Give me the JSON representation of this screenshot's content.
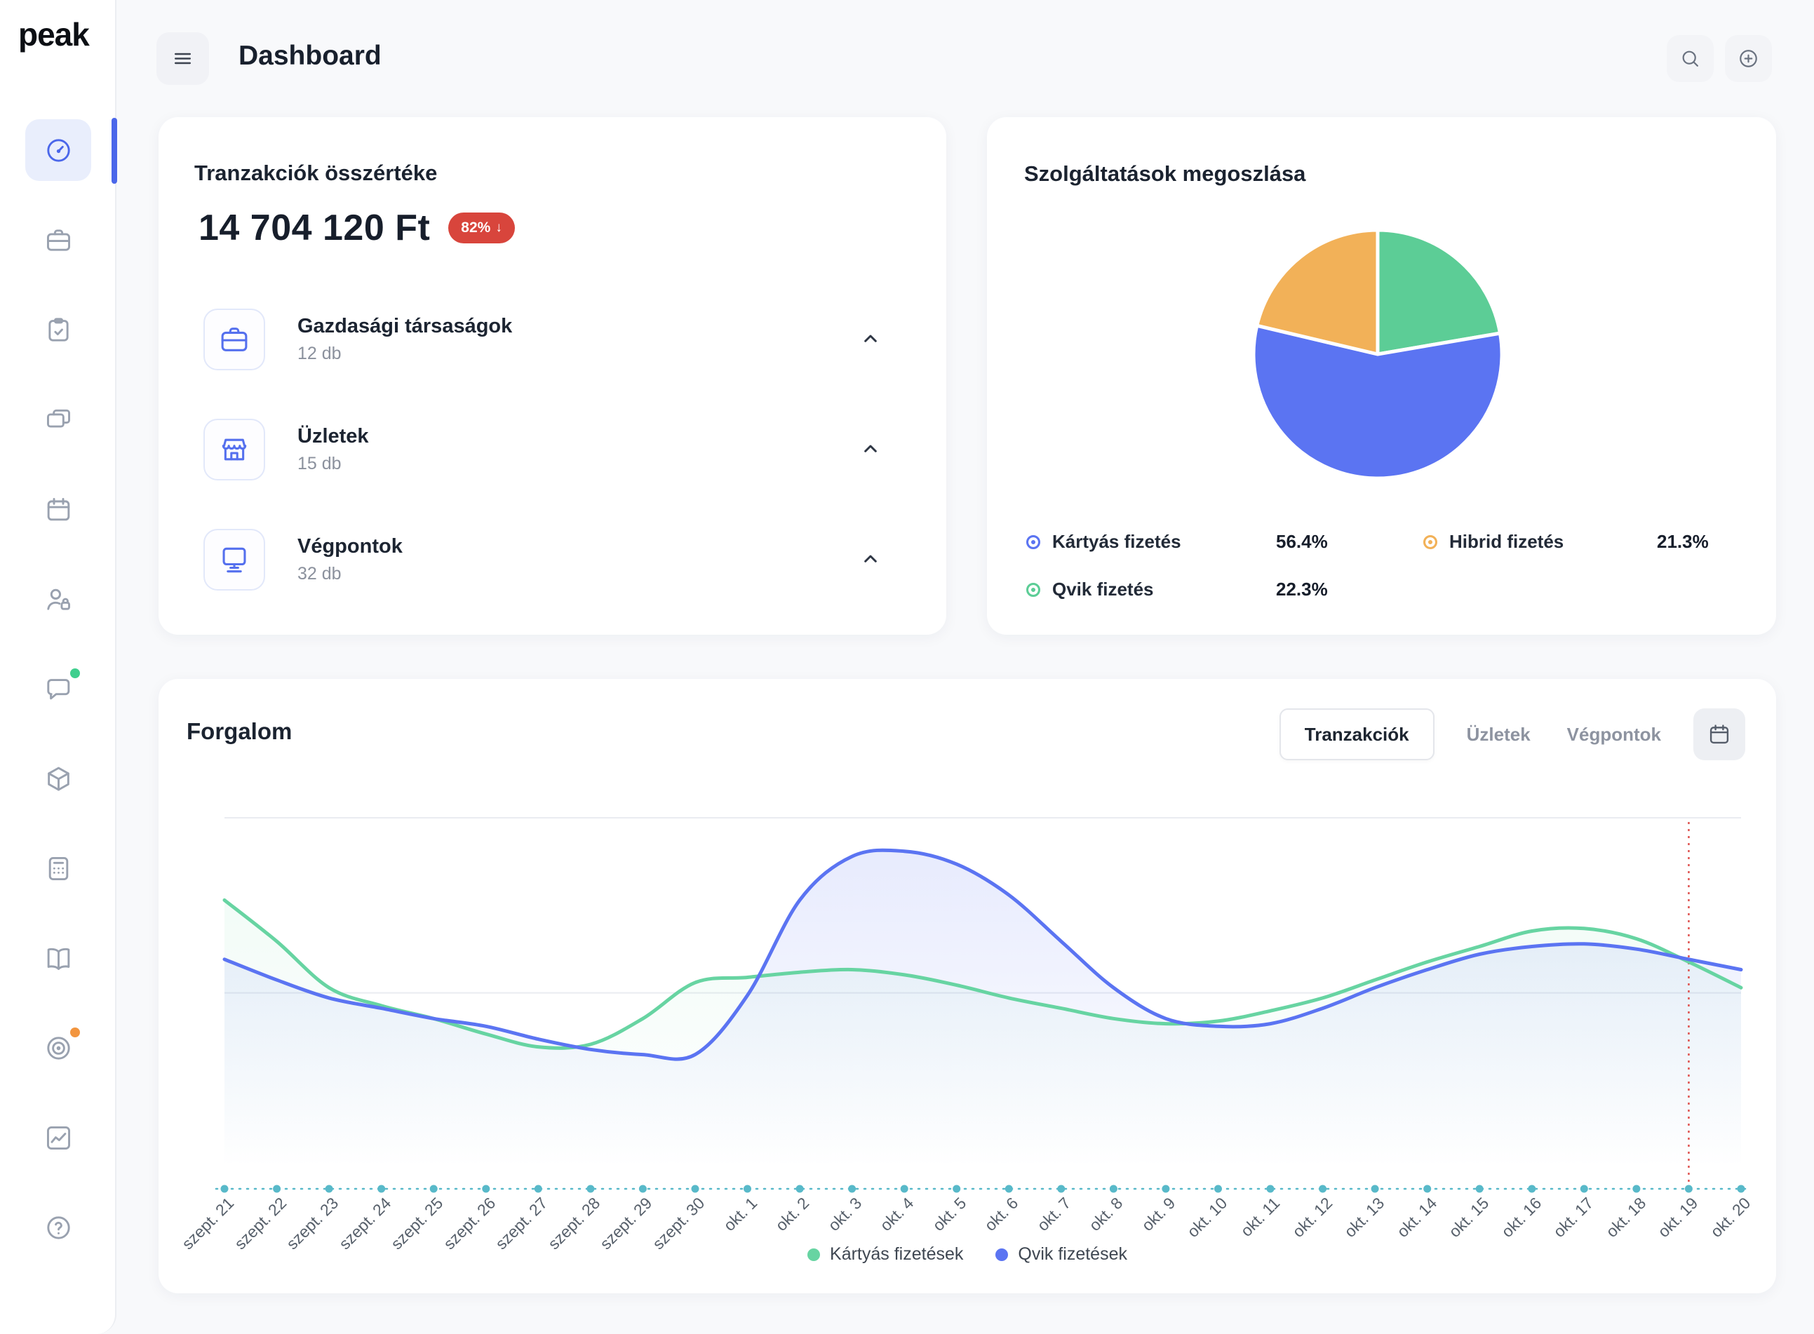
{
  "app": {
    "logo_text": "peak"
  },
  "header": {
    "title": "Dashboard"
  },
  "sidebar": {
    "items": [
      {
        "icon": "gauge-icon",
        "active": true
      },
      {
        "icon": "briefcase-icon"
      },
      {
        "icon": "clipboard-check-icon"
      },
      {
        "icon": "windows-icon"
      },
      {
        "icon": "calendar-icon"
      },
      {
        "icon": "user-lock-icon"
      },
      {
        "icon": "support-chat-icon",
        "badge_color": "#3fcf8e"
      },
      {
        "icon": "package-icon"
      },
      {
        "icon": "calculator-icon"
      },
      {
        "icon": "book-icon"
      },
      {
        "icon": "target-icon",
        "badge_color": "#f2953f"
      },
      {
        "icon": "area-chart-icon"
      },
      {
        "icon": "help-icon"
      }
    ]
  },
  "transactions_card": {
    "title": "Tranzakciók összértéke",
    "total": "14 704 120 Ft",
    "badge": {
      "text": "82%",
      "arrow": "↓",
      "color": "#d8453c"
    },
    "rows": [
      {
        "icon": "briefcase-icon",
        "label": "Gazdasági társaságok",
        "count": "12 db"
      },
      {
        "icon": "storefront-icon",
        "label": "Üzletek",
        "count": "15 db"
      },
      {
        "icon": "endpoint-icon",
        "label": "Végpontok",
        "count": "32 db"
      }
    ]
  },
  "services_card": {
    "title": "Szolgáltatások megoszlása",
    "chart_data": {
      "type": "pie",
      "start_angle": "top",
      "direction": "clockwise",
      "slices": [
        {
          "label": "Qvik fizetés",
          "value": 22.3,
          "color": "#5ccd96"
        },
        {
          "label": "Kártyás fizetés",
          "value": 56.4,
          "color": "#5b74f2"
        },
        {
          "label": "Hibrid fizetés",
          "value": 21.3,
          "color": "#f2b158"
        }
      ]
    },
    "legend": [
      {
        "label": "Kártyás fizetés",
        "value_text": "56.4%",
        "color": "#5b74f2"
      },
      {
        "label": "Qvik fizetés",
        "value_text": "22.3%",
        "color": "#5ccd96"
      },
      {
        "label": "Hibrid fizetés",
        "value_text": "21.3%",
        "color": "#f2b158"
      }
    ]
  },
  "traffic_card": {
    "title": "Forgalom",
    "tabs": [
      {
        "label": "Tranzakciók",
        "active": true
      },
      {
        "label": "Üzletek"
      },
      {
        "label": "Végpontok"
      }
    ],
    "chart_data": {
      "type": "line",
      "x": [
        "szept. 21",
        "szept. 22",
        "szept. 23",
        "szept. 24",
        "szept. 25",
        "szept. 26",
        "szept. 27",
        "szept. 28",
        "szept. 29",
        "szept. 30",
        "okt. 1",
        "okt. 2",
        "okt. 3",
        "okt. 4",
        "okt. 5",
        "okt. 6",
        "okt. 7",
        "okt. 8",
        "okt. 9",
        "okt. 10",
        "okt. 11",
        "okt. 12",
        "okt. 13",
        "okt. 14",
        "okt. 15",
        "okt. 16",
        "okt. 17",
        "okt. 18",
        "okt. 19",
        "okt. 20"
      ],
      "ylim": [
        0,
        100
      ],
      "series": [
        {
          "name": "Kártyás fizetések",
          "color": "#67d4a2",
          "values": [
            68,
            52,
            34,
            27,
            22,
            16,
            11,
            12,
            22,
            36,
            38,
            40,
            41,
            39,
            35,
            30,
            26,
            22,
            20,
            21,
            25,
            30,
            37,
            44,
            50,
            56,
            57,
            53,
            44,
            34
          ]
        },
        {
          "name": "Qvik fizetések",
          "color": "#5b74f2",
          "values": [
            45,
            37,
            30,
            26,
            22,
            19,
            14,
            10,
            8,
            8,
            31,
            68,
            85,
            87,
            82,
            70,
            52,
            34,
            22,
            19,
            20,
            26,
            34,
            41,
            47,
            50,
            51,
            49,
            45,
            41
          ]
        }
      ],
      "marker_x": "okt. 19",
      "marker_color": "#df5350",
      "axis_color": "#58b9c9",
      "grid": "horizontal"
    },
    "legend": [
      {
        "label": "Kártyás fizetések",
        "color": "#67d4a2"
      },
      {
        "label": "Qvik fizetések",
        "color": "#5b74f2"
      }
    ]
  }
}
